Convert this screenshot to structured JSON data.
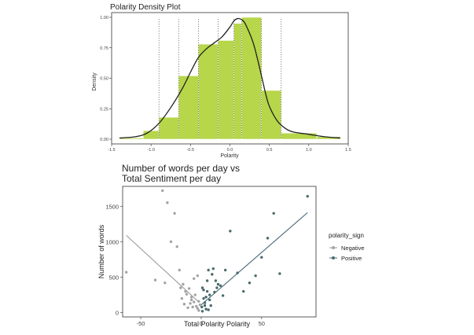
{
  "chart_data": [
    {
      "type": "bar",
      "title": "Polarity Density Plot",
      "xlabel": "Polarity",
      "ylabel": "Density",
      "xlim": [
        -1.5,
        1.5
      ],
      "ylim": [
        0,
        1.0
      ],
      "xticks": [
        "-1.5",
        "-1.0",
        "-0.5",
        "0.0",
        "0.5",
        "1.0",
        "1.5"
      ],
      "xtick_values": [
        -1.5,
        -1.0,
        -0.5,
        0.0,
        0.5,
        1.0,
        1.5
      ],
      "yticks": [
        "0.00",
        "0.25",
        "0.50",
        "0.75",
        "1.00"
      ],
      "ytick_values": [
        0,
        0.25,
        0.5,
        0.75,
        1.0
      ],
      "grid": false,
      "bins": [
        {
          "x0": -1.4,
          "x1": -1.1,
          "y": 0.01
        },
        {
          "x0": -1.1,
          "x1": -0.9,
          "y": 0.07
        },
        {
          "x0": -0.9,
          "x1": -0.65,
          "y": 0.18
        },
        {
          "x0": -0.65,
          "x1": -0.4,
          "y": 0.52
        },
        {
          "x0": -0.4,
          "x1": -0.15,
          "y": 0.78
        },
        {
          "x0": -0.15,
          "x1": 0.05,
          "y": 0.81
        },
        {
          "x0": 0.05,
          "x1": 0.15,
          "y": 0.95
        },
        {
          "x0": 0.15,
          "x1": 0.4,
          "y": 1.0
        },
        {
          "x0": 0.4,
          "x1": 0.65,
          "y": 0.4
        },
        {
          "x0": 0.65,
          "x1": 1.1,
          "y": 0.05
        },
        {
          "x0": 1.1,
          "x1": 1.4,
          "y": 0.02
        }
      ],
      "dotted_lines_x": [
        -0.9,
        -0.65,
        -0.4,
        -0.15,
        0.05,
        0.15,
        0.4,
        0.65
      ],
      "density_curve": {
        "x": [
          -1.4,
          -1.2,
          -1.05,
          -0.9,
          -0.75,
          -0.6,
          -0.5,
          -0.4,
          -0.3,
          -0.2,
          -0.1,
          0.0,
          0.05,
          0.1,
          0.15,
          0.2,
          0.3,
          0.4,
          0.45,
          0.5,
          0.6,
          0.7,
          0.8,
          1.0,
          1.2,
          1.4
        ],
        "y": [
          0.01,
          0.02,
          0.05,
          0.13,
          0.26,
          0.42,
          0.55,
          0.67,
          0.74,
          0.79,
          0.84,
          0.92,
          0.97,
          0.99,
          0.98,
          0.94,
          0.78,
          0.52,
          0.38,
          0.27,
          0.15,
          0.09,
          0.06,
          0.04,
          0.02,
          0.01
        ]
      },
      "colors": {
        "bar_fill": "#b7d64a",
        "bar_stroke": "#ffffff",
        "curve": "#222222",
        "dotted": "#555555"
      }
    },
    {
      "type": "scatter",
      "title": "Number of words per day vs\nTotal Sentiment per day",
      "xlabel": "Total Polarity Polarity",
      "ylabel": "Number of words",
      "xlim": [
        -65,
        95
      ],
      "ylim": [
        -60,
        1780
      ],
      "xticks": [
        "-50",
        "0",
        "50"
      ],
      "xtick_values": [
        -50,
        0,
        50
      ],
      "yticks": [
        "0",
        "500",
        "1000",
        "1500"
      ],
      "ytick_values": [
        0,
        500,
        1000,
        1500
      ],
      "grid": false,
      "legend": {
        "title": "polarity_sign",
        "placement": "right",
        "entries": [
          "Negative",
          "Positive"
        ]
      },
      "colors": {
        "negative": "#a3a3a3",
        "positive": "#4a6b6b",
        "negative_line": "#9a9a9a",
        "positive_line": "#4a6b78"
      },
      "series": [
        {
          "name": "Negative",
          "x": [
            -62,
            -38,
            -32,
            -28,
            -22,
            -20,
            -18,
            -15,
            -12,
            -10,
            -8,
            -6,
            -5,
            -4,
            -3,
            -2,
            -1,
            -7,
            -9,
            -14,
            -16,
            -11,
            -25,
            -30,
            -13,
            -6,
            -3,
            -8,
            -2,
            -17
          ],
          "y": [
            570,
            460,
            1720,
            1550,
            1400,
            930,
            600,
            400,
            260,
            340,
            180,
            150,
            250,
            90,
            60,
            30,
            110,
            80,
            130,
            120,
            200,
            70,
            1000,
            420,
            300,
            480,
            520,
            220,
            160,
            350
          ],
          "fit": {
            "x": [
              -62,
              -2
            ],
            "y": [
              1090,
              150
            ]
          }
        },
        {
          "name": "Positive",
          "x": [
            0.5,
            1,
            2,
            3,
            4,
            5,
            6,
            7,
            8,
            10,
            12,
            14,
            16,
            18,
            20,
            24,
            30,
            35,
            40,
            45,
            50,
            55,
            60,
            65,
            88,
            2,
            3,
            5,
            7,
            9,
            11,
            13,
            4,
            6,
            1
          ],
          "y": [
            80,
            20,
            200,
            140,
            50,
            300,
            600,
            250,
            100,
            620,
            450,
            400,
            380,
            240,
            600,
            1150,
            560,
            300,
            420,
            520,
            780,
            1050,
            1400,
            550,
            1640,
            320,
            100,
            450,
            180,
            540,
            290,
            350,
            220,
            40,
            350
          ],
          "fit": {
            "x": [
              0,
              88
            ],
            "y": [
              110,
              1410
            ]
          }
        }
      ]
    }
  ]
}
